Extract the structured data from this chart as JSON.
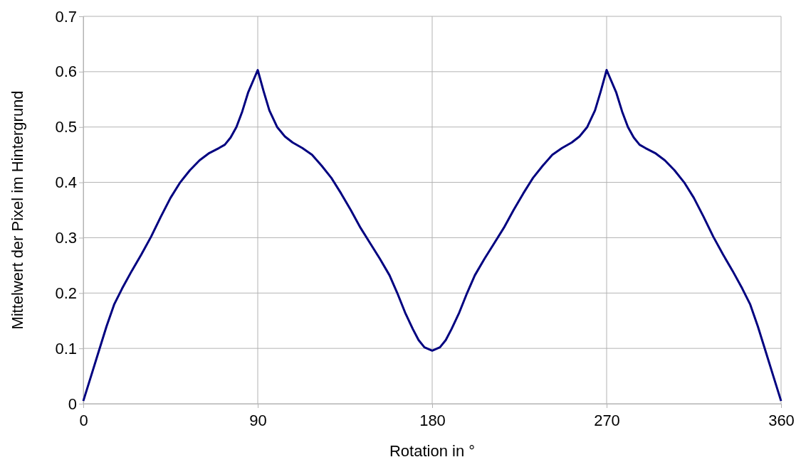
{
  "chart_data": {
    "type": "line",
    "xlabel": "Rotation in °",
    "ylabel": "Mittelwert der Pixel im Hintergrund",
    "xlim": [
      0,
      360
    ],
    "xticks": [
      0,
      90,
      180,
      270,
      360
    ],
    "ylim": [
      0,
      0.7
    ],
    "yticks": [
      0,
      0.1,
      0.2,
      0.3,
      0.4,
      0.5,
      0.6,
      0.7
    ],
    "grid": true,
    "marker": "none",
    "line_style": "solid",
    "x": [
      0,
      4,
      8,
      12,
      16,
      20,
      25,
      30,
      35,
      40,
      45,
      50,
      55,
      60,
      65,
      70,
      73,
      76,
      79,
      82,
      85,
      90,
      93,
      96,
      100,
      104,
      108,
      113,
      118,
      123,
      128,
      133,
      138,
      143,
      148,
      153,
      158,
      162,
      166,
      170,
      173,
      176,
      180,
      184,
      187,
      190,
      194,
      198,
      202,
      207,
      212,
      217,
      222,
      227,
      232,
      237,
      242,
      247,
      252,
      256,
      260,
      264,
      267,
      270,
      275,
      278,
      281,
      284,
      287,
      290,
      295,
      300,
      305,
      310,
      315,
      320,
      325,
      330,
      335,
      340,
      344,
      348,
      352,
      356,
      360
    ],
    "series": [
      {
        "color": "#000080",
        "values": [
          0.005,
          0.05,
          0.095,
          0.14,
          0.18,
          0.208,
          0.24,
          0.27,
          0.302,
          0.338,
          0.372,
          0.4,
          0.422,
          0.44,
          0.453,
          0.462,
          0.468,
          0.481,
          0.5,
          0.528,
          0.562,
          0.603,
          0.565,
          0.53,
          0.5,
          0.483,
          0.472,
          0.462,
          0.45,
          0.43,
          0.408,
          0.38,
          0.35,
          0.318,
          0.29,
          0.262,
          0.232,
          0.2,
          0.165,
          0.135,
          0.115,
          0.102,
          0.096,
          0.102,
          0.115,
          0.135,
          0.165,
          0.2,
          0.232,
          0.262,
          0.29,
          0.318,
          0.35,
          0.38,
          0.408,
          0.43,
          0.45,
          0.462,
          0.472,
          0.483,
          0.5,
          0.53,
          0.565,
          0.603,
          0.562,
          0.528,
          0.5,
          0.481,
          0.468,
          0.462,
          0.453,
          0.44,
          0.422,
          0.4,
          0.372,
          0.338,
          0.302,
          0.27,
          0.24,
          0.208,
          0.18,
          0.14,
          0.095,
          0.05,
          0.005
        ]
      }
    ]
  }
}
